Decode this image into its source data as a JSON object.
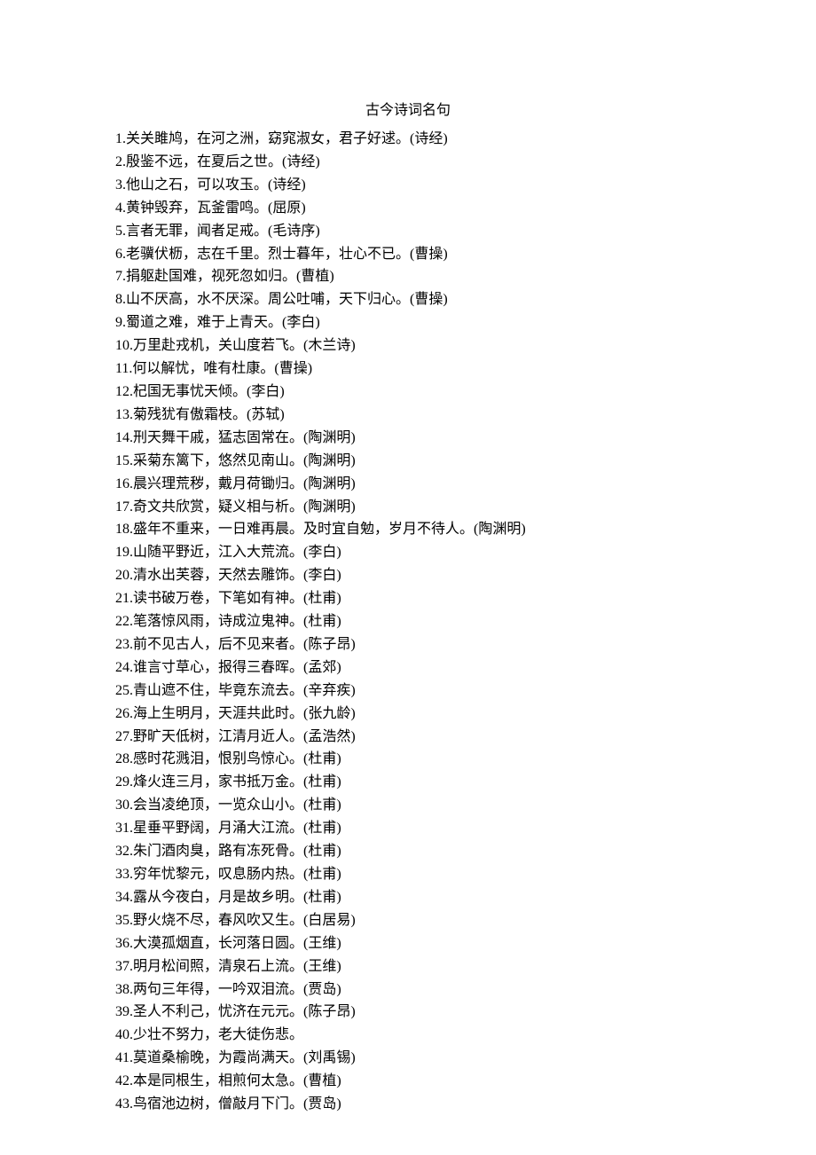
{
  "title": "古今诗词名句",
  "title_fontsize": 16,
  "body_fontsize": 16,
  "text_color": "#000000",
  "background_color": "#ffffff",
  "line_height": 1.62,
  "quotes": [
    {
      "n": 1,
      "text": "关关雎鸠，在河之洲，窈窕淑女，君子好逑。",
      "src": "诗经"
    },
    {
      "n": 2,
      "text": "殷鉴不远，在夏后之世。",
      "src": "诗经"
    },
    {
      "n": 3,
      "text": "他山之石，可以攻玉。",
      "src": "诗经"
    },
    {
      "n": 4,
      "text": "黄钟毁弃，瓦釜雷鸣。",
      "src": "屈原"
    },
    {
      "n": 5,
      "text": "言者无罪，闻者足戒。",
      "src": "毛诗序"
    },
    {
      "n": 6,
      "text": "老骥伏枥，志在千里。烈士暮年，壮心不已。",
      "src": "曹操"
    },
    {
      "n": 7,
      "text": "捐躯赴国难，视死忽如归。",
      "src": "曹植"
    },
    {
      "n": 8,
      "text": "山不厌高，水不厌深。周公吐哺，天下归心。",
      "src": "曹操"
    },
    {
      "n": 9,
      "text": "蜀道之难，难于上青天。",
      "src": "李白"
    },
    {
      "n": 10,
      "text": "万里赴戎机，关山度若飞。",
      "src": "木兰诗"
    },
    {
      "n": 11,
      "text": "何以解忧，唯有杜康。",
      "src": "曹操"
    },
    {
      "n": 12,
      "text": "杞国无事忧天倾。",
      "src": "李白"
    },
    {
      "n": 13,
      "text": "菊残犹有傲霜枝。",
      "src": "苏轼"
    },
    {
      "n": 14,
      "text": "刑天舞干戚，猛志固常在。",
      "src": "陶渊明"
    },
    {
      "n": 15,
      "text": "采菊东篱下，悠然见南山。",
      "src": "陶渊明"
    },
    {
      "n": 16,
      "text": "晨兴理荒秽，戴月荷锄归。",
      "src": "陶渊明"
    },
    {
      "n": 17,
      "text": "奇文共欣赏，疑义相与析。",
      "src": "陶渊明"
    },
    {
      "n": 18,
      "text": "盛年不重来，一日难再晨。及时宜自勉，岁月不待人。",
      "src": "陶渊明"
    },
    {
      "n": 19,
      "text": "山随平野近，江入大荒流。",
      "src": "李白"
    },
    {
      "n": 20,
      "text": "清水出芙蓉，天然去雕饰。",
      "src": "李白"
    },
    {
      "n": 21,
      "text": "读书破万卷，下笔如有神。",
      "src": "杜甫"
    },
    {
      "n": 22,
      "text": "笔落惊风雨，诗成泣鬼神。",
      "src": "杜甫"
    },
    {
      "n": 23,
      "text": "前不见古人，后不见来者。",
      "src": "陈子昂"
    },
    {
      "n": 24,
      "text": "谁言寸草心，报得三春晖。",
      "src": "孟郊"
    },
    {
      "n": 25,
      "text": "青山遮不住，毕竟东流去。",
      "src": "辛弃疾"
    },
    {
      "n": 26,
      "text": "海上生明月，天涯共此时。",
      "src": "张九龄"
    },
    {
      "n": 27,
      "text": "野旷天低树，江清月近人。",
      "src": "孟浩然"
    },
    {
      "n": 28,
      "text": "感时花溅泪，恨别鸟惊心。",
      "src": "杜甫"
    },
    {
      "n": 29,
      "text": "烽火连三月，家书抵万金。",
      "src": "杜甫"
    },
    {
      "n": 30,
      "text": "会当凌绝顶，一览众山小。",
      "src": "杜甫"
    },
    {
      "n": 31,
      "text": "星垂平野阔，月涌大江流。",
      "src": "杜甫"
    },
    {
      "n": 32,
      "text": "朱门酒肉臭，路有冻死骨。",
      "src": "杜甫"
    },
    {
      "n": 33,
      "text": "穷年忧黎元，叹息肠内热。",
      "src": "杜甫"
    },
    {
      "n": 34,
      "text": "露从今夜白，月是故乡明。",
      "src": "杜甫"
    },
    {
      "n": 35,
      "text": "野火烧不尽，春风吹又生。",
      "src": "白居易"
    },
    {
      "n": 36,
      "text": "大漠孤烟直，长河落日圆。",
      "src": "王维"
    },
    {
      "n": 37,
      "text": "明月松间照，清泉石上流。",
      "src": "王维"
    },
    {
      "n": 38,
      "text": "两句三年得，一吟双泪流。",
      "src": "贾岛"
    },
    {
      "n": 39,
      "text": "圣人不利己，忧济在元元。",
      "src": "陈子昂"
    },
    {
      "n": 40,
      "text": "少壮不努力，老大徒伤悲。",
      "src": ""
    },
    {
      "n": 41,
      "text": "莫道桑榆晚，为霞尚满天。",
      "src": "刘禹锡"
    },
    {
      "n": 42,
      "text": "本是同根生，相煎何太急。",
      "src": "曹植"
    },
    {
      "n": 43,
      "text": "鸟宿池边树，僧敲月下门。",
      "src": "贾岛"
    }
  ]
}
